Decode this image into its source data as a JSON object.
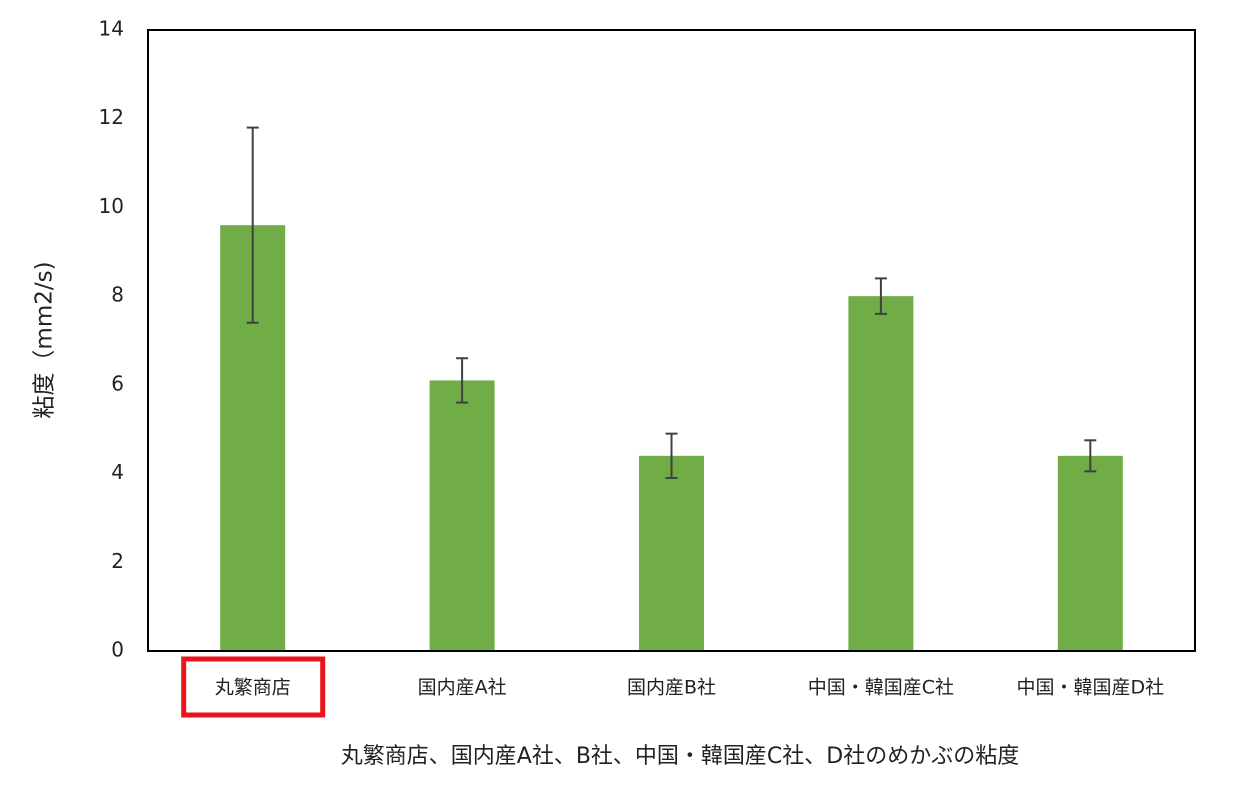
{
  "chart_data": {
    "type": "bar",
    "ylabel": "粘度（mm2/s)",
    "xlabel": "丸繁商店、国内産A社、B社、中国・韓国産C社、D社のめかぶの粘度",
    "categories": [
      "丸繁商店",
      "国内産A社",
      "国内産B社",
      "中国・韓国産C社",
      "中国・韓国産D社"
    ],
    "values": [
      9.6,
      6.1,
      4.4,
      8.0,
      4.4
    ],
    "errors": [
      2.2,
      0.5,
      0.5,
      0.4,
      0.35
    ],
    "color": "#70ad47",
    "ylim": [
      0,
      14
    ],
    "yticks": [
      0,
      2,
      4,
      6,
      8,
      10,
      12,
      14
    ]
  }
}
